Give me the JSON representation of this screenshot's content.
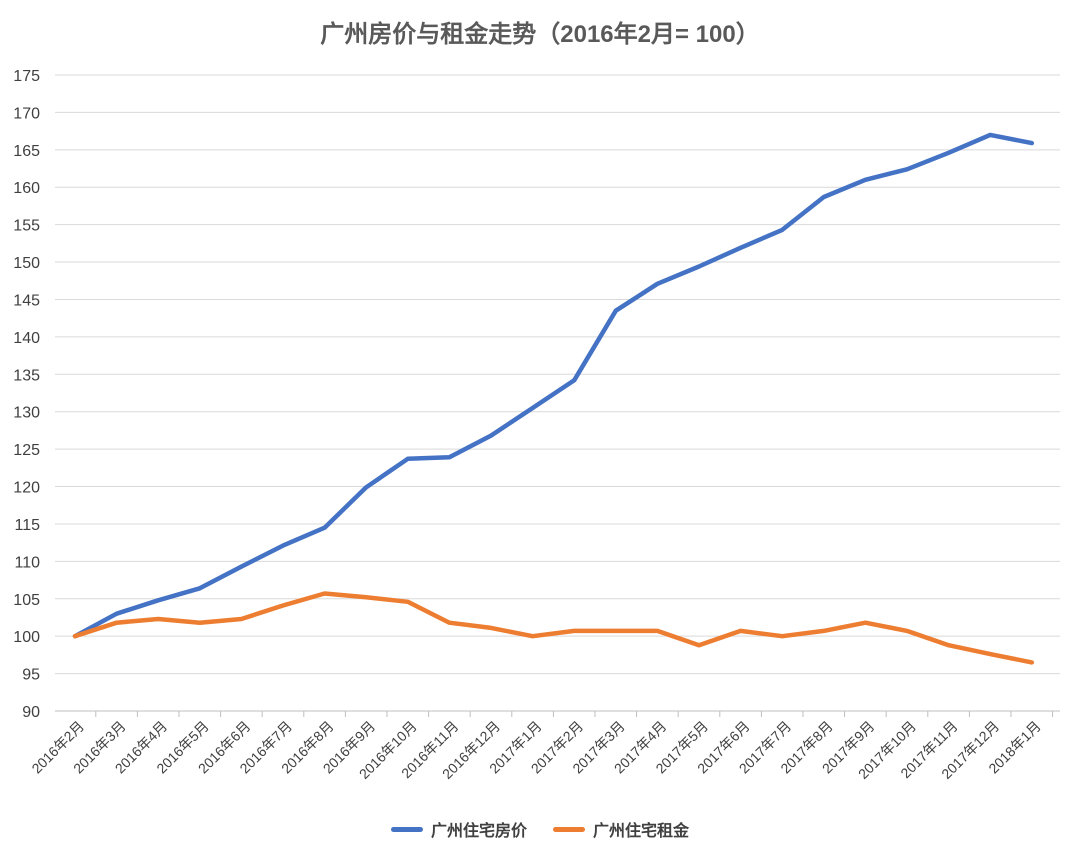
{
  "chart_data": {
    "type": "line",
    "title": "广州房价与租金走势（2016年2月= 100）",
    "categories": [
      "2016年2月",
      "2016年3月",
      "2016年4月",
      "2016年5月",
      "2016年6月",
      "2016年7月",
      "2016年8月",
      "2016年9月",
      "2016年10月",
      "2016年11月",
      "2016年12月",
      "2017年1月",
      "2017年2月",
      "2017年3月",
      "2017年4月",
      "2017年5月",
      "2017年6月",
      "2017年7月",
      "2017年8月",
      "2017年9月",
      "2017年10月",
      "2017年11月",
      "2017年12月",
      "2018年1月"
    ],
    "series": [
      {
        "name": "广州住宅房价",
        "color": "#4472C4",
        "values": [
          100,
          103,
          104.8,
          106.4,
          109.3,
          112.1,
          114.5,
          119.9,
          123.7,
          123.9,
          126.8,
          130.5,
          134.2,
          143.5,
          147.1,
          149.4,
          151.9,
          154.3,
          158.7,
          161.0,
          162.4,
          164.6,
          167.0,
          165.9
        ]
      },
      {
        "name": "广州住宅租金",
        "color": "#ED7D31",
        "values": [
          100,
          101.8,
          102.3,
          101.8,
          102.3,
          104.1,
          105.7,
          105.2,
          104.6,
          101.8,
          101.1,
          100.0,
          100.7,
          100.7,
          100.7,
          98.8,
          100.7,
          100.0,
          100.7,
          101.8,
          100.7,
          98.8,
          97.6,
          96.5
        ]
      }
    ],
    "ylim": [
      90,
      175
    ],
    "ytick_step": 5,
    "grid": true,
    "legend_position": "bottom"
  }
}
